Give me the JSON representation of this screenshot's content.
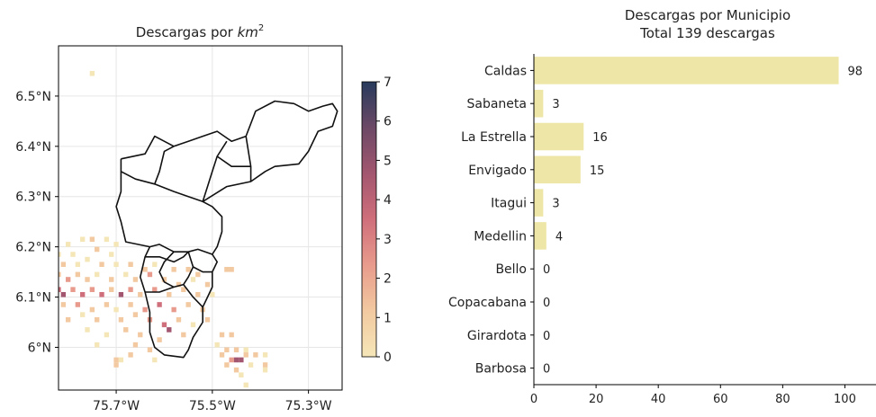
{
  "chart_data": [
    {
      "type": "heatmap",
      "title": "Descargas por ",
      "title_math": "km",
      "title_sup": "2",
      "xlabel": "",
      "ylabel": "",
      "xlim": [
        -75.82,
        -75.23
      ],
      "ylim": [
        5.915,
        6.6
      ],
      "xticks": [
        {
          "value": -75.7,
          "label": "75.7°W"
        },
        {
          "value": -75.5,
          "label": "75.5°W"
        },
        {
          "value": -75.3,
          "label": "75.3°W"
        }
      ],
      "yticks": [
        {
          "value": 6.5,
          "label": "6.5°N"
        },
        {
          "value": 6.4,
          "label": "6.4°N"
        },
        {
          "value": 6.3,
          "label": "6.3°N"
        },
        {
          "value": 6.2,
          "label": "6.2°N"
        },
        {
          "value": 6.1,
          "label": "6.1°N"
        },
        {
          "value": 6.0,
          "label": "6°N"
        }
      ],
      "grid": true,
      "colorbar": {
        "min": 0,
        "max": 7,
        "ticks": [
          "0",
          "1",
          "2",
          "3",
          "4",
          "5",
          "6",
          "7"
        ],
        "colors": [
          "#f5e6b8",
          "#f2c9a0",
          "#e89b8c",
          "#cf6f7b",
          "#a3566f",
          "#6c4966",
          "#273a5c"
        ]
      },
      "cell_size_deg": 0.01,
      "cells": [
        {
          "lon": -75.75,
          "lat": 6.545,
          "v": 1
        },
        {
          "lon": -75.8,
          "lat": 6.205,
          "v": 1
        },
        {
          "lon": -75.77,
          "lat": 6.215,
          "v": 1
        },
        {
          "lon": -75.75,
          "lat": 6.215,
          "v": 2
        },
        {
          "lon": -75.72,
          "lat": 6.215,
          "v": 1
        },
        {
          "lon": -75.7,
          "lat": 6.205,
          "v": 1
        },
        {
          "lon": -75.82,
          "lat": 6.185,
          "v": 1
        },
        {
          "lon": -75.79,
          "lat": 6.185,
          "v": 1
        },
        {
          "lon": -75.74,
          "lat": 6.195,
          "v": 2
        },
        {
          "lon": -75.71,
          "lat": 6.185,
          "v": 1
        },
        {
          "lon": -75.81,
          "lat": 6.165,
          "v": 2
        },
        {
          "lon": -75.78,
          "lat": 6.165,
          "v": 1
        },
        {
          "lon": -75.76,
          "lat": 6.175,
          "v": 1
        },
        {
          "lon": -75.73,
          "lat": 6.165,
          "v": 2
        },
        {
          "lon": -75.7,
          "lat": 6.165,
          "v": 1
        },
        {
          "lon": -75.67,
          "lat": 6.165,
          "v": 2
        },
        {
          "lon": -75.64,
          "lat": 6.155,
          "v": 2
        },
        {
          "lon": -75.62,
          "lat": 6.165,
          "v": 1
        },
        {
          "lon": -75.58,
          "lat": 6.155,
          "v": 2
        },
        {
          "lon": -75.55,
          "lat": 6.155,
          "v": 2
        },
        {
          "lon": -75.53,
          "lat": 6.145,
          "v": 2
        },
        {
          "lon": -75.47,
          "lat": 6.155,
          "v": 2
        },
        {
          "lon": -75.46,
          "lat": 6.155,
          "v": 2
        },
        {
          "lon": -75.82,
          "lat": 6.145,
          "v": 2
        },
        {
          "lon": -75.8,
          "lat": 6.135,
          "v": 3
        },
        {
          "lon": -75.78,
          "lat": 6.145,
          "v": 2
        },
        {
          "lon": -75.76,
          "lat": 6.135,
          "v": 2
        },
        {
          "lon": -75.74,
          "lat": 6.145,
          "v": 1
        },
        {
          "lon": -75.71,
          "lat": 6.135,
          "v": 2
        },
        {
          "lon": -75.68,
          "lat": 6.145,
          "v": 1
        },
        {
          "lon": -75.66,
          "lat": 6.135,
          "v": 2
        },
        {
          "lon": -75.63,
          "lat": 6.145,
          "v": 3
        },
        {
          "lon": -75.6,
          "lat": 6.135,
          "v": 2
        },
        {
          "lon": -75.57,
          "lat": 6.125,
          "v": 2
        },
        {
          "lon": -75.54,
          "lat": 6.135,
          "v": 1
        },
        {
          "lon": -75.51,
          "lat": 6.125,
          "v": 2
        },
        {
          "lon": -75.82,
          "lat": 6.115,
          "v": 4
        },
        {
          "lon": -75.81,
          "lat": 6.105,
          "v": 5
        },
        {
          "lon": -75.79,
          "lat": 6.115,
          "v": 3
        },
        {
          "lon": -75.77,
          "lat": 6.105,
          "v": 4
        },
        {
          "lon": -75.75,
          "lat": 6.115,
          "v": 3
        },
        {
          "lon": -75.73,
          "lat": 6.105,
          "v": 4
        },
        {
          "lon": -75.71,
          "lat": 6.115,
          "v": 2
        },
        {
          "lon": -75.69,
          "lat": 6.105,
          "v": 5
        },
        {
          "lon": -75.67,
          "lat": 6.115,
          "v": 3
        },
        {
          "lon": -75.65,
          "lat": 6.105,
          "v": 2
        },
        {
          "lon": -75.62,
          "lat": 6.115,
          "v": 3
        },
        {
          "lon": -75.59,
          "lat": 6.105,
          "v": 2
        },
        {
          "lon": -75.56,
          "lat": 6.115,
          "v": 2
        },
        {
          "lon": -75.53,
          "lat": 6.105,
          "v": 2
        },
        {
          "lon": -75.5,
          "lat": 6.105,
          "v": 1
        },
        {
          "lon": -75.81,
          "lat": 6.085,
          "v": 2
        },
        {
          "lon": -75.78,
          "lat": 6.085,
          "v": 3
        },
        {
          "lon": -75.75,
          "lat": 6.075,
          "v": 2
        },
        {
          "lon": -75.72,
          "lat": 6.085,
          "v": 2
        },
        {
          "lon": -75.7,
          "lat": 6.075,
          "v": 1
        },
        {
          "lon": -75.67,
          "lat": 6.085,
          "v": 2
        },
        {
          "lon": -75.64,
          "lat": 6.075,
          "v": 3
        },
        {
          "lon": -75.61,
          "lat": 6.085,
          "v": 4
        },
        {
          "lon": -75.58,
          "lat": 6.075,
          "v": 3
        },
        {
          "lon": -75.55,
          "lat": 6.085,
          "v": 2
        },
        {
          "lon": -75.52,
          "lat": 6.075,
          "v": 2
        },
        {
          "lon": -75.8,
          "lat": 6.055,
          "v": 2
        },
        {
          "lon": -75.77,
          "lat": 6.065,
          "v": 1
        },
        {
          "lon": -75.74,
          "lat": 6.055,
          "v": 2
        },
        {
          "lon": -75.69,
          "lat": 6.055,
          "v": 2
        },
        {
          "lon": -75.66,
          "lat": 6.065,
          "v": 2
        },
        {
          "lon": -75.63,
          "lat": 6.055,
          "v": 3
        },
        {
          "lon": -75.6,
          "lat": 6.045,
          "v": 4
        },
        {
          "lon": -75.59,
          "lat": 6.035,
          "v": 5
        },
        {
          "lon": -75.57,
          "lat": 6.055,
          "v": 2
        },
        {
          "lon": -75.54,
          "lat": 6.045,
          "v": 1
        },
        {
          "lon": -75.51,
          "lat": 6.055,
          "v": 2
        },
        {
          "lon": -75.76,
          "lat": 6.035,
          "v": 1
        },
        {
          "lon": -75.72,
          "lat": 6.025,
          "v": 1
        },
        {
          "lon": -75.68,
          "lat": 6.035,
          "v": 2
        },
        {
          "lon": -75.65,
          "lat": 6.025,
          "v": 2
        },
        {
          "lon": -75.61,
          "lat": 6.015,
          "v": 2
        },
        {
          "lon": -75.56,
          "lat": 6.025,
          "v": 2
        },
        {
          "lon": -75.74,
          "lat": 6.005,
          "v": 1
        },
        {
          "lon": -75.66,
          "lat": 6.005,
          "v": 2
        },
        {
          "lon": -75.63,
          "lat": 5.995,
          "v": 2
        },
        {
          "lon": -75.67,
          "lat": 5.985,
          "v": 2
        },
        {
          "lon": -75.69,
          "lat": 5.975,
          "v": 1
        },
        {
          "lon": -75.48,
          "lat": 6.025,
          "v": 2
        },
        {
          "lon": -75.46,
          "lat": 6.025,
          "v": 2
        },
        {
          "lon": -75.49,
          "lat": 6.005,
          "v": 1
        },
        {
          "lon": -75.47,
          "lat": 5.995,
          "v": 2
        },
        {
          "lon": -75.45,
          "lat": 5.995,
          "v": 2
        },
        {
          "lon": -75.43,
          "lat": 5.995,
          "v": 1
        },
        {
          "lon": -75.48,
          "lat": 5.985,
          "v": 2
        },
        {
          "lon": -75.46,
          "lat": 5.975,
          "v": 3
        },
        {
          "lon": -75.45,
          "lat": 5.975,
          "v": 5
        },
        {
          "lon": -75.44,
          "lat": 5.975,
          "v": 5
        },
        {
          "lon": -75.43,
          "lat": 5.985,
          "v": 2
        },
        {
          "lon": -75.41,
          "lat": 5.985,
          "v": 2
        },
        {
          "lon": -75.39,
          "lat": 5.985,
          "v": 1
        },
        {
          "lon": -75.47,
          "lat": 5.965,
          "v": 2
        },
        {
          "lon": -75.45,
          "lat": 5.955,
          "v": 2
        },
        {
          "lon": -75.42,
          "lat": 5.965,
          "v": 1
        },
        {
          "lon": -75.39,
          "lat": 5.965,
          "v": 2
        },
        {
          "lon": -75.44,
          "lat": 5.945,
          "v": 1
        },
        {
          "lon": -75.39,
          "lat": 5.955,
          "v": 1
        },
        {
          "lon": -75.43,
          "lat": 5.925,
          "v": 1
        },
        {
          "lon": -75.7,
          "lat": 5.975,
          "v": 2
        },
        {
          "lon": -75.7,
          "lat": 5.965,
          "v": 2
        },
        {
          "lon": -75.62,
          "lat": 5.975,
          "v": 1
        }
      ],
      "boundaries": [
        {
          "name": "north",
          "points": [
            [
              -75.69,
              6.375
            ],
            [
              -75.64,
              6.385
            ],
            [
              -75.62,
              6.42
            ],
            [
              -75.58,
              6.4
            ],
            [
              -75.55,
              6.41
            ],
            [
              -75.52,
              6.42
            ],
            [
              -75.49,
              6.43
            ],
            [
              -75.46,
              6.41
            ],
            [
              -75.43,
              6.42
            ],
            [
              -75.41,
              6.47
            ],
            [
              -75.37,
              6.49
            ],
            [
              -75.33,
              6.485
            ],
            [
              -75.3,
              6.47
            ],
            [
              -75.27,
              6.48
            ],
            [
              -75.25,
              6.485
            ],
            [
              -75.24,
              6.47
            ],
            [
              -75.25,
              6.44
            ],
            [
              -75.28,
              6.43
            ],
            [
              -75.3,
              6.39
            ],
            [
              -75.32,
              6.365
            ],
            [
              -75.37,
              6.36
            ],
            [
              -75.39,
              6.35
            ],
            [
              -75.42,
              6.33
            ],
            [
              -75.47,
              6.32
            ],
            [
              -75.52,
              6.29
            ],
            [
              -75.55,
              6.3
            ],
            [
              -75.58,
              6.31
            ],
            [
              -75.62,
              6.325
            ],
            [
              -75.66,
              6.335
            ],
            [
              -75.69,
              6.35
            ],
            [
              -75.69,
              6.375
            ]
          ]
        },
        {
          "name": "inner-1",
          "points": [
            [
              -75.62,
              6.325
            ],
            [
              -75.61,
              6.35
            ],
            [
              -75.6,
              6.39
            ],
            [
              -75.58,
              6.4
            ]
          ]
        },
        {
          "name": "inner-2",
          "points": [
            [
              -75.52,
              6.29
            ],
            [
              -75.51,
              6.32
            ],
            [
              -75.5,
              6.35
            ],
            [
              -75.49,
              6.38
            ],
            [
              -75.47,
              6.41
            ]
          ]
        },
        {
          "name": "inner-3",
          "points": [
            [
              -75.42,
              6.33
            ],
            [
              -75.42,
              6.36
            ],
            [
              -75.43,
              6.42
            ]
          ]
        },
        {
          "name": "inner-4",
          "points": [
            [
              -75.49,
              6.38
            ],
            [
              -75.46,
              6.36
            ],
            [
              -75.42,
              6.36
            ]
          ]
        },
        {
          "name": "center",
          "points": [
            [
              -75.69,
              6.35
            ],
            [
              -75.69,
              6.31
            ],
            [
              -75.7,
              6.28
            ],
            [
              -75.69,
              6.25
            ],
            [
              -75.68,
              6.21
            ],
            [
              -75.63,
              6.2
            ],
            [
              -75.61,
              6.205
            ],
            [
              -75.58,
              6.19
            ],
            [
              -75.55,
              6.19
            ],
            [
              -75.53,
              6.195
            ],
            [
              -75.5,
              6.185
            ],
            [
              -75.49,
              6.2
            ],
            [
              -75.48,
              6.23
            ],
            [
              -75.48,
              6.26
            ],
            [
              -75.5,
              6.28
            ],
            [
              -75.52,
              6.29
            ]
          ]
        },
        {
          "name": "south-outer",
          "points": [
            [
              -75.63,
              6.2
            ],
            [
              -75.64,
              6.18
            ],
            [
              -75.65,
              6.14
            ],
            [
              -75.64,
              6.11
            ],
            [
              -75.63,
              6.07
            ],
            [
              -75.63,
              6.03
            ],
            [
              -75.62,
              6.0
            ],
            [
              -75.6,
              5.985
            ],
            [
              -75.56,
              5.98
            ],
            [
              -75.55,
              5.995
            ],
            [
              -75.54,
              6.02
            ],
            [
              -75.52,
              6.05
            ],
            [
              -75.52,
              6.08
            ],
            [
              -75.51,
              6.1
            ],
            [
              -75.5,
              6.12
            ],
            [
              -75.5,
              6.15
            ],
            [
              -75.49,
              6.17
            ],
            [
              -75.5,
              6.185
            ]
          ]
        },
        {
          "name": "south-inner-1",
          "points": [
            [
              -75.64,
              6.18
            ],
            [
              -75.61,
              6.18
            ],
            [
              -75.58,
              6.17
            ],
            [
              -75.56,
              6.18
            ],
            [
              -75.55,
              6.19
            ]
          ]
        },
        {
          "name": "south-inner-2",
          "points": [
            [
              -75.58,
              6.19
            ],
            [
              -75.6,
              6.17
            ],
            [
              -75.61,
              6.15
            ],
            [
              -75.6,
              6.13
            ],
            [
              -75.58,
              6.12
            ],
            [
              -75.56,
              6.125
            ],
            [
              -75.55,
              6.14
            ],
            [
              -75.54,
              6.16
            ],
            [
              -75.55,
              6.19
            ]
          ]
        },
        {
          "name": "south-inner-3",
          "points": [
            [
              -75.64,
              6.11
            ],
            [
              -75.61,
              6.11
            ],
            [
              -75.58,
              6.12
            ]
          ]
        },
        {
          "name": "south-inner-4",
          "points": [
            [
              -75.56,
              6.125
            ],
            [
              -75.54,
              6.1
            ],
            [
              -75.52,
              6.08
            ]
          ]
        },
        {
          "name": "south-inner-5",
          "points": [
            [
              -75.54,
              6.16
            ],
            [
              -75.52,
              6.15
            ],
            [
              -75.5,
              6.15
            ]
          ]
        }
      ]
    },
    {
      "type": "bar",
      "orientation": "horizontal",
      "title": "Descargas por Municipio",
      "subtitle": "Total 139 descargas",
      "xlabel": "",
      "ylabel": "",
      "xlim": [
        0,
        110
      ],
      "xticks": [
        0,
        20,
        40,
        60,
        80,
        100
      ],
      "bar_color": "#eee6a6",
      "categories": [
        "Caldas",
        "Sabaneta",
        "La Estrella",
        "Envigado",
        "Itagui",
        "Medellin",
        "Bello",
        "Copacabana",
        "Girardota",
        "Barbosa"
      ],
      "values": [
        98,
        3,
        16,
        15,
        3,
        4,
        0,
        0,
        0,
        0
      ],
      "value_labels": [
        "98",
        "3",
        "16",
        "15",
        "3",
        "4",
        "0",
        "0",
        "0",
        "0"
      ]
    }
  ]
}
